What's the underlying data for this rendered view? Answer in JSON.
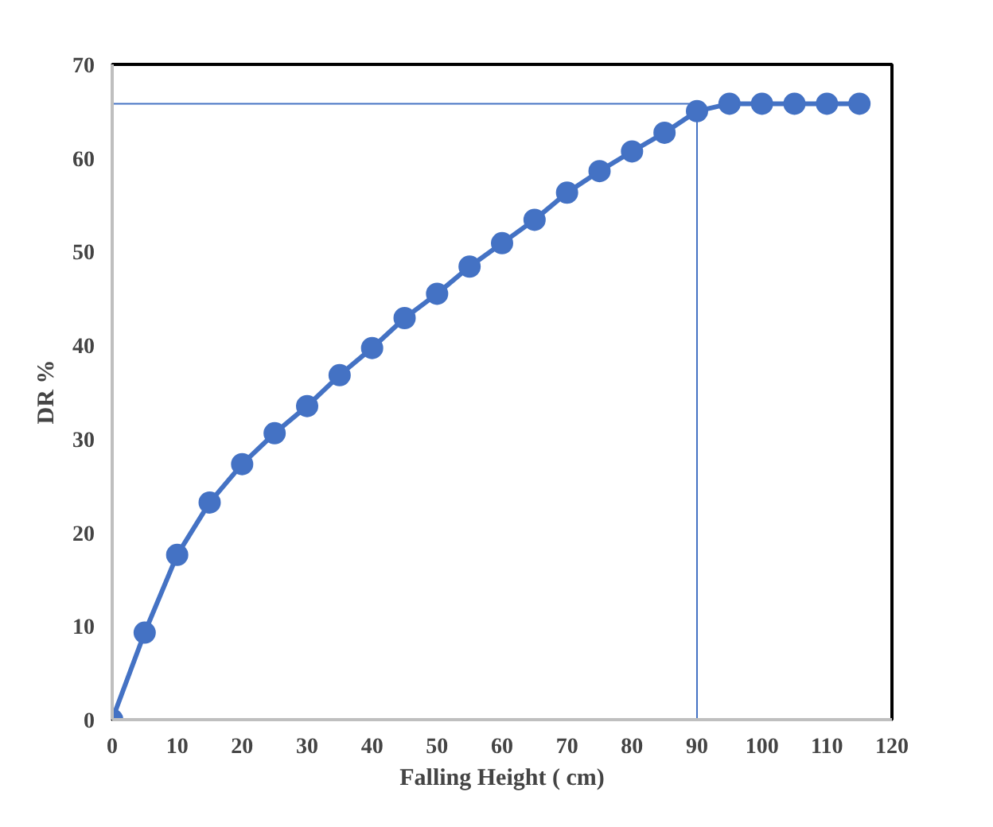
{
  "chart_data": {
    "type": "line",
    "xlabel": "Falling Height ( cm)",
    "ylabel": "DR %",
    "x": [
      0,
      5,
      10,
      15,
      20,
      25,
      30,
      35,
      40,
      45,
      50,
      55,
      60,
      65,
      70,
      75,
      80,
      85,
      90,
      95,
      100,
      105,
      110,
      115
    ],
    "series": [
      {
        "color": "#4472c4",
        "values": [
          0,
          9.3,
          17.6,
          23.2,
          27.3,
          30.6,
          33.5,
          36.8,
          39.7,
          42.9,
          45.5,
          48.4,
          50.9,
          53.4,
          56.3,
          58.6,
          60.7,
          62.7,
          65.0,
          65.8,
          65.8,
          65.8,
          65.8,
          65.8
        ]
      }
    ],
    "marker": "circle",
    "line_style": "solid",
    "grid": false,
    "xlim": [
      0,
      120
    ],
    "ylim": [
      0,
      70
    ],
    "xticks": [
      0,
      10,
      20,
      30,
      40,
      50,
      60,
      70,
      80,
      90,
      100,
      110,
      120
    ],
    "yticks": [
      0,
      10,
      20,
      30,
      40,
      50,
      60,
      70
    ],
    "ref_lines": [
      {
        "axis": "x",
        "value": 90,
        "color": "#4472c4"
      },
      {
        "axis": "y",
        "value": 65.8,
        "color": "#4472c4"
      }
    ]
  }
}
